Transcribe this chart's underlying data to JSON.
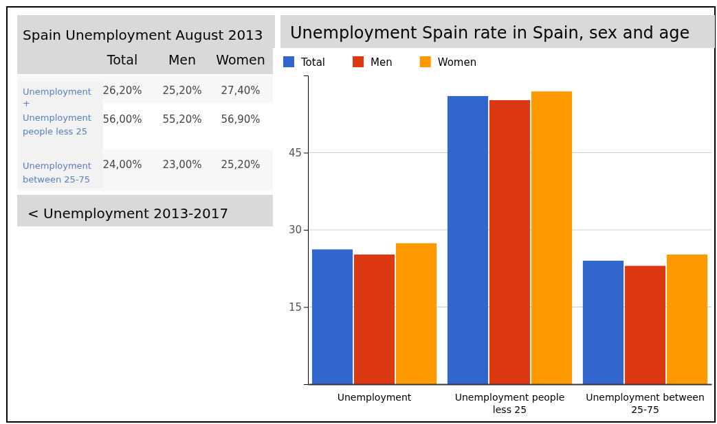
{
  "chart_data": [
    {
      "type": "other",
      "title": "Spain Unemployment August 2013",
      "categories": [
        "Unemployment",
        "Unemployment people less 25",
        "Unemployment between 25-75"
      ],
      "series": [
        {
          "name": "Total",
          "values": [
            26.2,
            56.0,
            24.0
          ],
          "value_labels": [
            "26,20%",
            "56,00%",
            "24,00%"
          ]
        },
        {
          "name": "Men",
          "values": [
            25.2,
            55.2,
            23.0
          ],
          "value_labels": [
            "25,20%",
            "55,20%",
            "23,00%"
          ]
        },
        {
          "name": "Women",
          "values": [
            27.4,
            56.9,
            25.2
          ],
          "value_labels": [
            "27,40%",
            "56,90%",
            "25,20%"
          ]
        }
      ],
      "annotations": [
        "+",
        "< Unemployment 2013-2017"
      ]
    },
    {
      "type": "bar",
      "title": "Unemployment Spain rate in Spain, sex and age",
      "categories": [
        "Unemployment",
        "Unemployment  people less 25",
        "Unemployment between 25-75"
      ],
      "series": [
        {
          "name": "Total",
          "color": "#3366cc",
          "values": [
            26.2,
            56.0,
            24.0
          ]
        },
        {
          "name": "Men",
          "color": "#dc3912",
          "values": [
            25.2,
            55.2,
            23.0
          ]
        },
        {
          "name": "Women",
          "color": "#ff9900",
          "values": [
            27.4,
            56.9,
            25.2
          ]
        }
      ],
      "ylim": [
        0,
        60
      ],
      "yticks": [
        15,
        30,
        45
      ],
      "grid": "y",
      "legend": "top left"
    }
  ]
}
